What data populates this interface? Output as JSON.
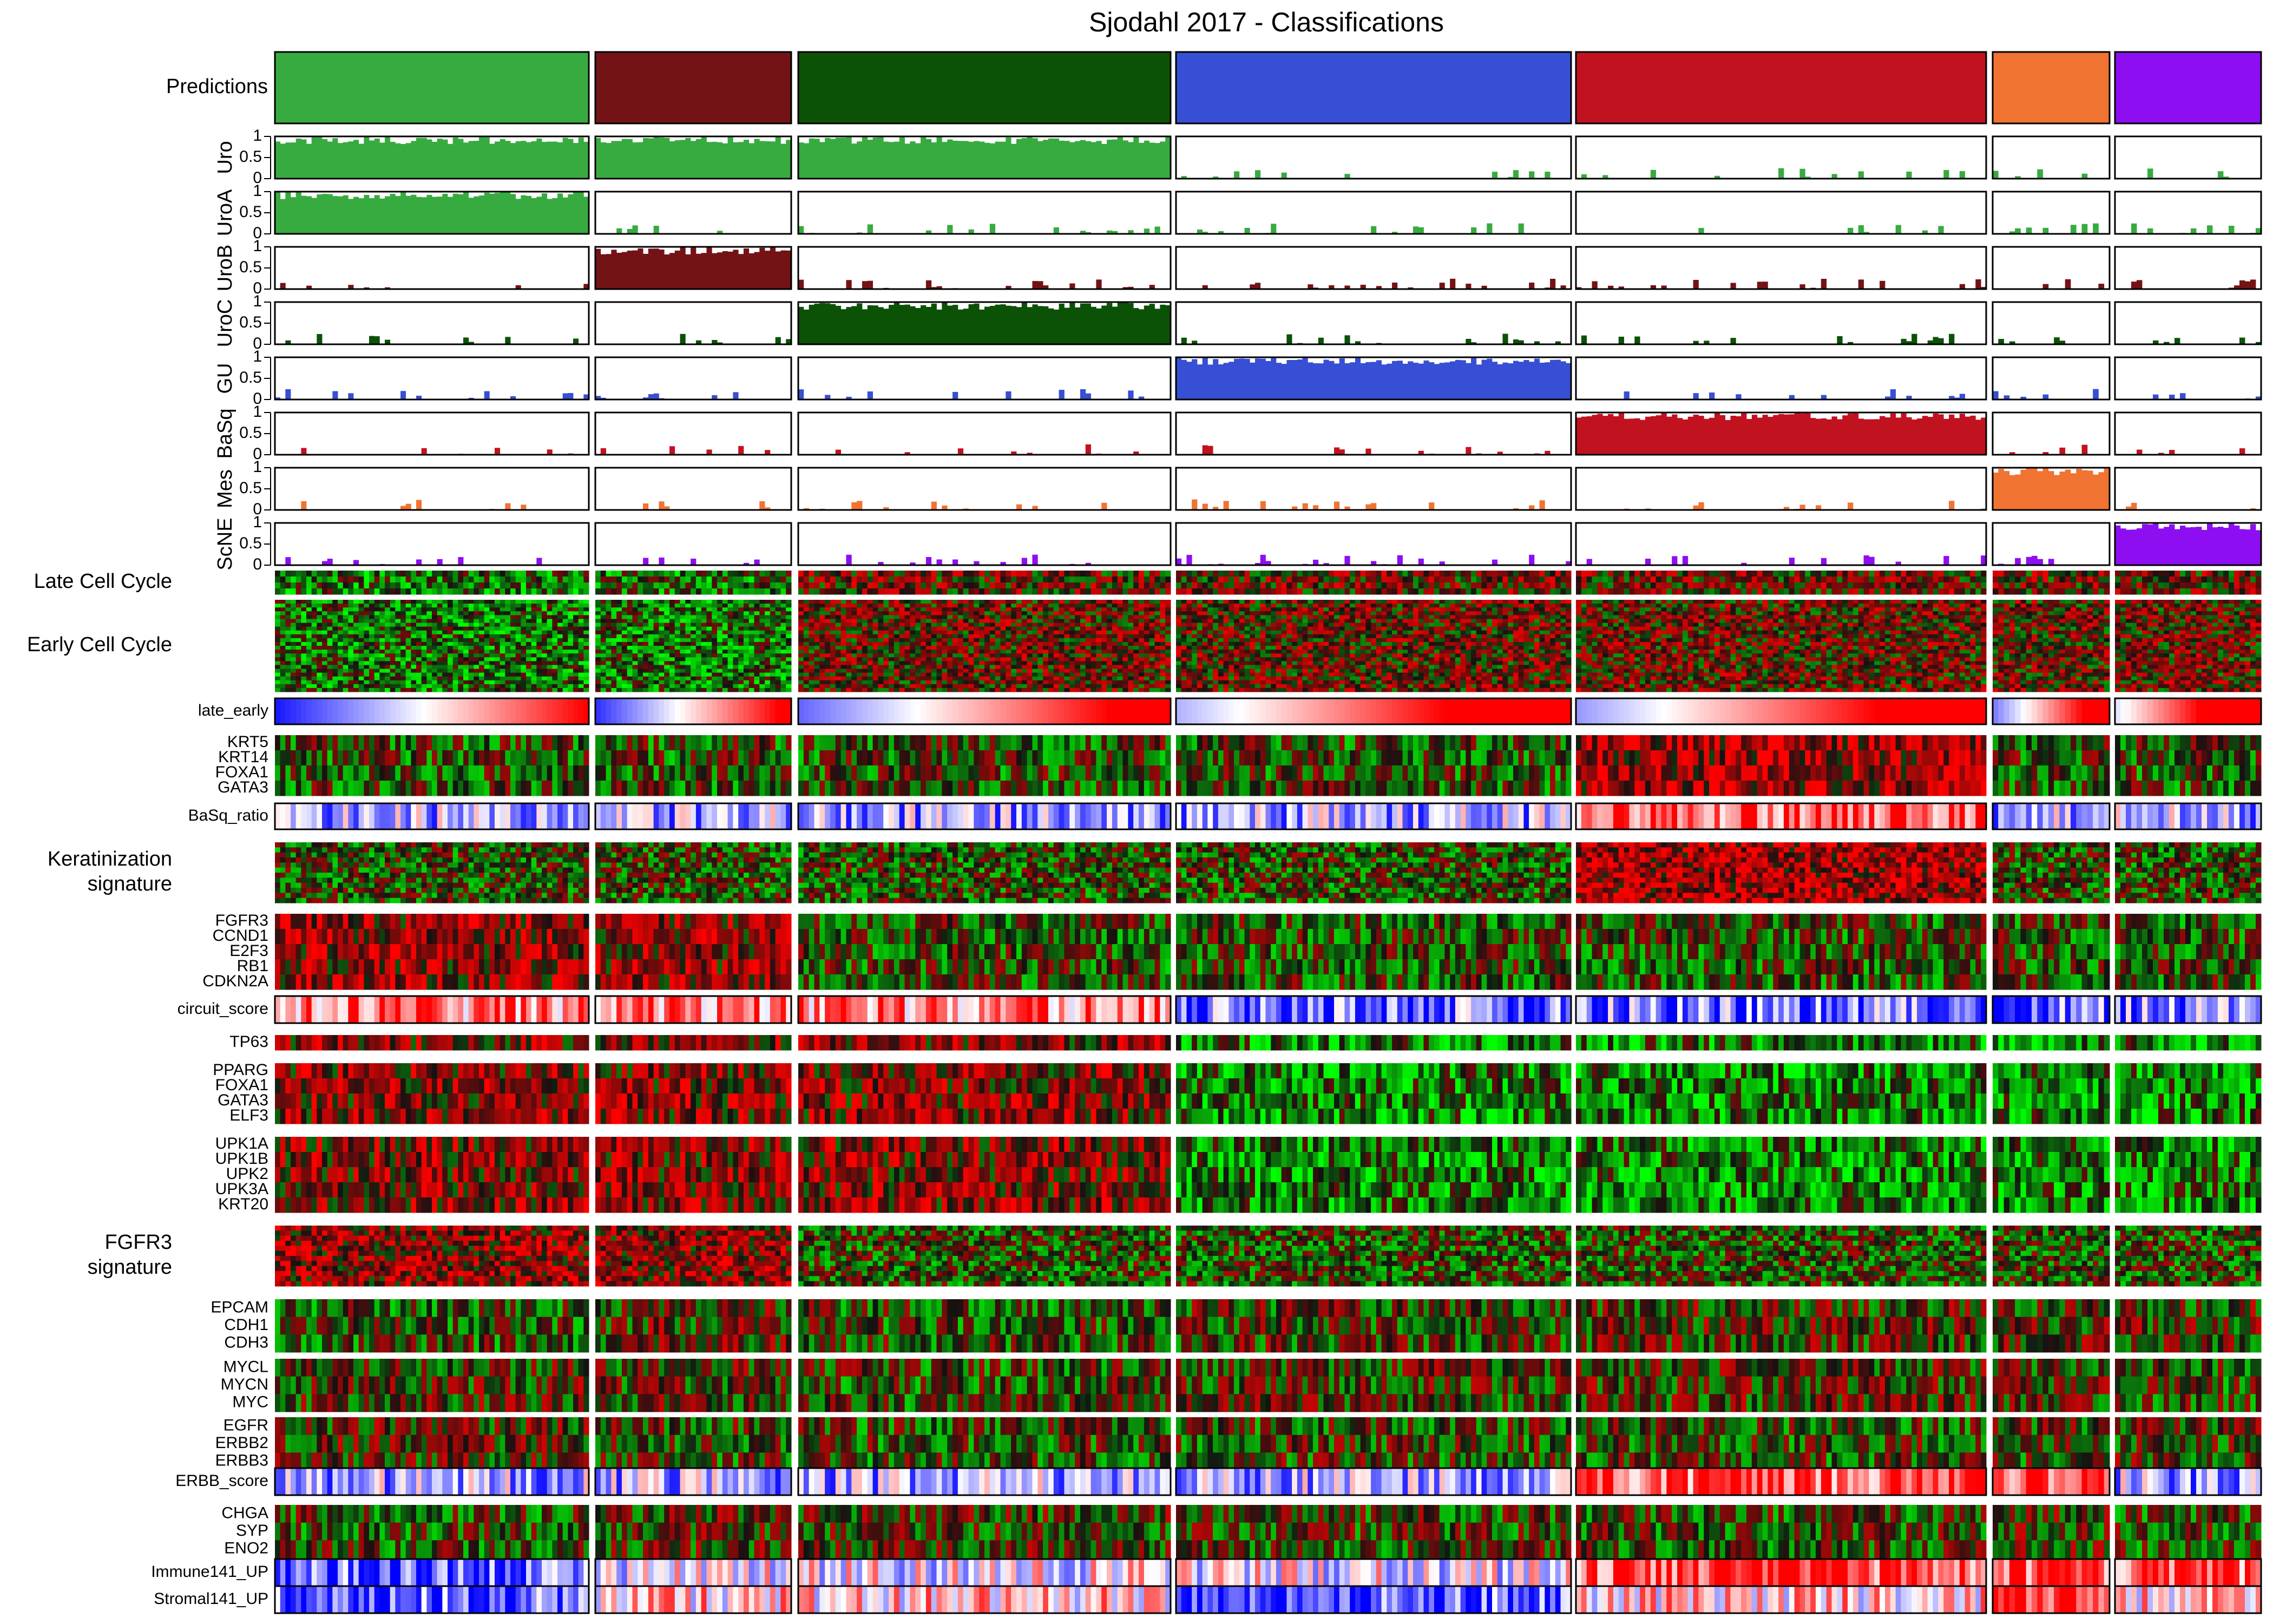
{
  "chart_data": {
    "type": "heatmap",
    "title": "Sjodahl 2017 - Classifications",
    "clusters": [
      {
        "name": "UroA",
        "color": "#37ab3f",
        "n": 60
      },
      {
        "name": "UroB",
        "color": "#731316",
        "n": 37
      },
      {
        "name": "UroC",
        "color": "#0b5206",
        "n": 70
      },
      {
        "name": "GU",
        "color": "#374fd4",
        "n": 75
      },
      {
        "name": "BaSq",
        "color": "#c11220",
        "n": 77
      },
      {
        "name": "Mes",
        "color": "#f07331",
        "n": 21
      },
      {
        "name": "ScNE",
        "color": "#8e0ef2",
        "n": 27
      }
    ],
    "prediction_row_label": "Predictions",
    "score_rows": [
      {
        "label": "Uro",
        "color": "#37ab3f",
        "high_clusters": [
          0,
          1,
          2
        ],
        "ylim": [
          0,
          1
        ]
      },
      {
        "label": "UroA",
        "color": "#37ab3f",
        "high_clusters": [
          0
        ],
        "ylim": [
          0,
          1
        ]
      },
      {
        "label": "UroB",
        "color": "#731316",
        "high_clusters": [
          1
        ],
        "ylim": [
          0,
          1
        ]
      },
      {
        "label": "UroC",
        "color": "#0b5206",
        "high_clusters": [
          2
        ],
        "ylim": [
          0,
          1
        ]
      },
      {
        "label": "GU",
        "color": "#374fd4",
        "high_clusters": [
          3
        ],
        "ylim": [
          0,
          1
        ]
      },
      {
        "label": "BaSq",
        "color": "#c11220",
        "high_clusters": [
          4
        ],
        "ylim": [
          0,
          1
        ]
      },
      {
        "label": "Mes",
        "color": "#f07331",
        "high_clusters": [
          5
        ],
        "ylim": [
          0,
          1
        ]
      },
      {
        "label": "ScNE",
        "color": "#8e0ef2",
        "high_clusters": [
          6
        ],
        "ylim": [
          0,
          1
        ]
      }
    ],
    "score_ticks": [
      "1",
      "0.5",
      "0"
    ],
    "heatmap_blocks": [
      {
        "labels": [
          "Late Cell Cycle"
        ],
        "kind": "rg",
        "label_style": "group",
        "rows": 4
      },
      {
        "labels": [
          "Early Cell Cycle"
        ],
        "kind": "rg",
        "label_style": "group",
        "rows": 24
      },
      {
        "labels": [
          "late_early"
        ],
        "kind": "gradient",
        "label_style": "score"
      },
      {
        "labels": [
          "KRT5",
          "KRT14",
          "FOXA1",
          "GATA3"
        ],
        "kind": "rg",
        "label_style": "genes"
      },
      {
        "labels": [
          "BaSq_ratio"
        ],
        "kind": "bwr",
        "label_style": "score"
      },
      {
        "labels": [
          "Keratinization",
          "signature"
        ],
        "kind": "rg",
        "label_style": "group",
        "rows": 12
      },
      {
        "labels": [
          "FGFR3",
          "CCND1",
          "E2F3",
          "RB1",
          "CDKN2A"
        ],
        "kind": "rg",
        "label_style": "genes"
      },
      {
        "labels": [
          "circuit_score"
        ],
        "kind": "bwr",
        "label_style": "score"
      },
      {
        "labels": [
          "TP63"
        ],
        "kind": "rg",
        "label_style": "genes"
      },
      {
        "labels": [
          "PPARG",
          "FOXA1",
          "GATA3",
          "ELF3"
        ],
        "kind": "rg",
        "label_style": "genes"
      },
      {
        "labels": [
          "UPK1A",
          "UPK1B",
          "UPK2",
          "UPK3A",
          "KRT20"
        ],
        "kind": "rg",
        "label_style": "genes"
      },
      {
        "labels": [
          "FGFR3",
          "signature"
        ],
        "kind": "rg",
        "label_style": "group",
        "rows": 12
      },
      {
        "labels": [
          "EPCAM",
          "CDH1",
          "CDH3"
        ],
        "kind": "rg",
        "label_style": "genes"
      },
      {
        "labels": [
          "MYCL",
          "MYCN",
          "MYC"
        ],
        "kind": "rg",
        "label_style": "genes"
      },
      {
        "labels": [
          "EGFR",
          "ERBB2",
          "ERBB3"
        ],
        "kind": "rg",
        "label_style": "genes"
      },
      {
        "labels": [
          "ERBB_score"
        ],
        "kind": "bwr",
        "label_style": "score"
      },
      {
        "labels": [
          "CHGA",
          "SYP",
          "ENO2"
        ],
        "kind": "rg",
        "label_style": "genes"
      },
      {
        "labels": [
          "Immune141_UP"
        ],
        "kind": "bwr",
        "label_style": "score"
      },
      {
        "labels": [
          "Stromal141_UP"
        ],
        "kind": "bwr",
        "label_style": "score"
      }
    ],
    "grid": false,
    "legend": "none"
  }
}
